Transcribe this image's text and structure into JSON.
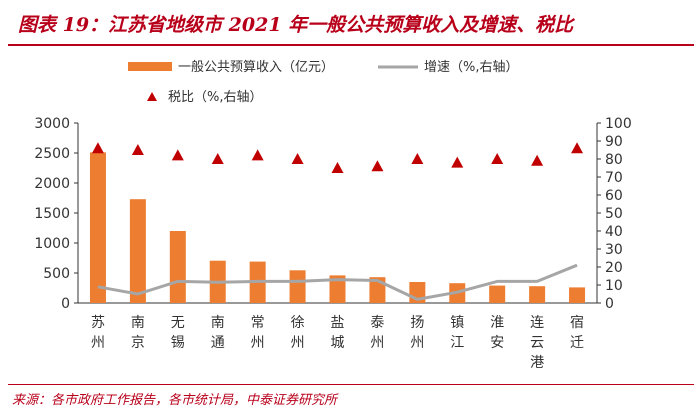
{
  "header": {
    "title": "图表 19：江苏省地级市 2021 年一般公共预算收入及增速、税比"
  },
  "footer": {
    "source": "来源：各市政府工作报告，各市统计局，中泰证券研究所"
  },
  "colors": {
    "bar": "#ED7D31",
    "line": "#A6A6A6",
    "marker": "#C00000",
    "accent": "#B8001A"
  },
  "chart_data": {
    "type": "bar",
    "categories": [
      "苏州",
      "南京",
      "无锡",
      "南通",
      "常州",
      "徐州",
      "盐城",
      "泰州",
      "扬州",
      "镇江",
      "淮安",
      "连云港",
      "宿迁"
    ],
    "series": [
      {
        "name": "一般公共预算收入（亿元）",
        "type": "bar",
        "axis": "left",
        "values": [
          2510,
          1730,
          1200,
          705,
          690,
          545,
          460,
          430,
          350,
          330,
          290,
          280,
          260
        ]
      },
      {
        "name": "增速（%,右轴）",
        "type": "line",
        "axis": "right",
        "values": [
          9,
          5,
          12,
          11.5,
          12,
          12,
          13,
          12.5,
          2,
          6,
          12,
          12,
          21
        ]
      },
      {
        "name": "税比（%,右轴）",
        "type": "scatter",
        "axis": "right",
        "marker": "triangle",
        "values": [
          86,
          85,
          82,
          80,
          82,
          80,
          75,
          76,
          80,
          78,
          80,
          79,
          86
        ]
      }
    ],
    "y_left": {
      "min": 0,
      "max": 3000,
      "ticks": [
        0,
        500,
        1000,
        1500,
        2000,
        2500,
        3000
      ]
    },
    "y_right": {
      "min": 0,
      "max": 100,
      "ticks": [
        0,
        10,
        20,
        30,
        40,
        50,
        60,
        70,
        80,
        90,
        100
      ]
    },
    "legend": [
      "一般公共预算收入（亿元）",
      "增速（%,右轴）",
      "税比（%,右轴）"
    ],
    "legend_position": "top",
    "grid": false
  }
}
